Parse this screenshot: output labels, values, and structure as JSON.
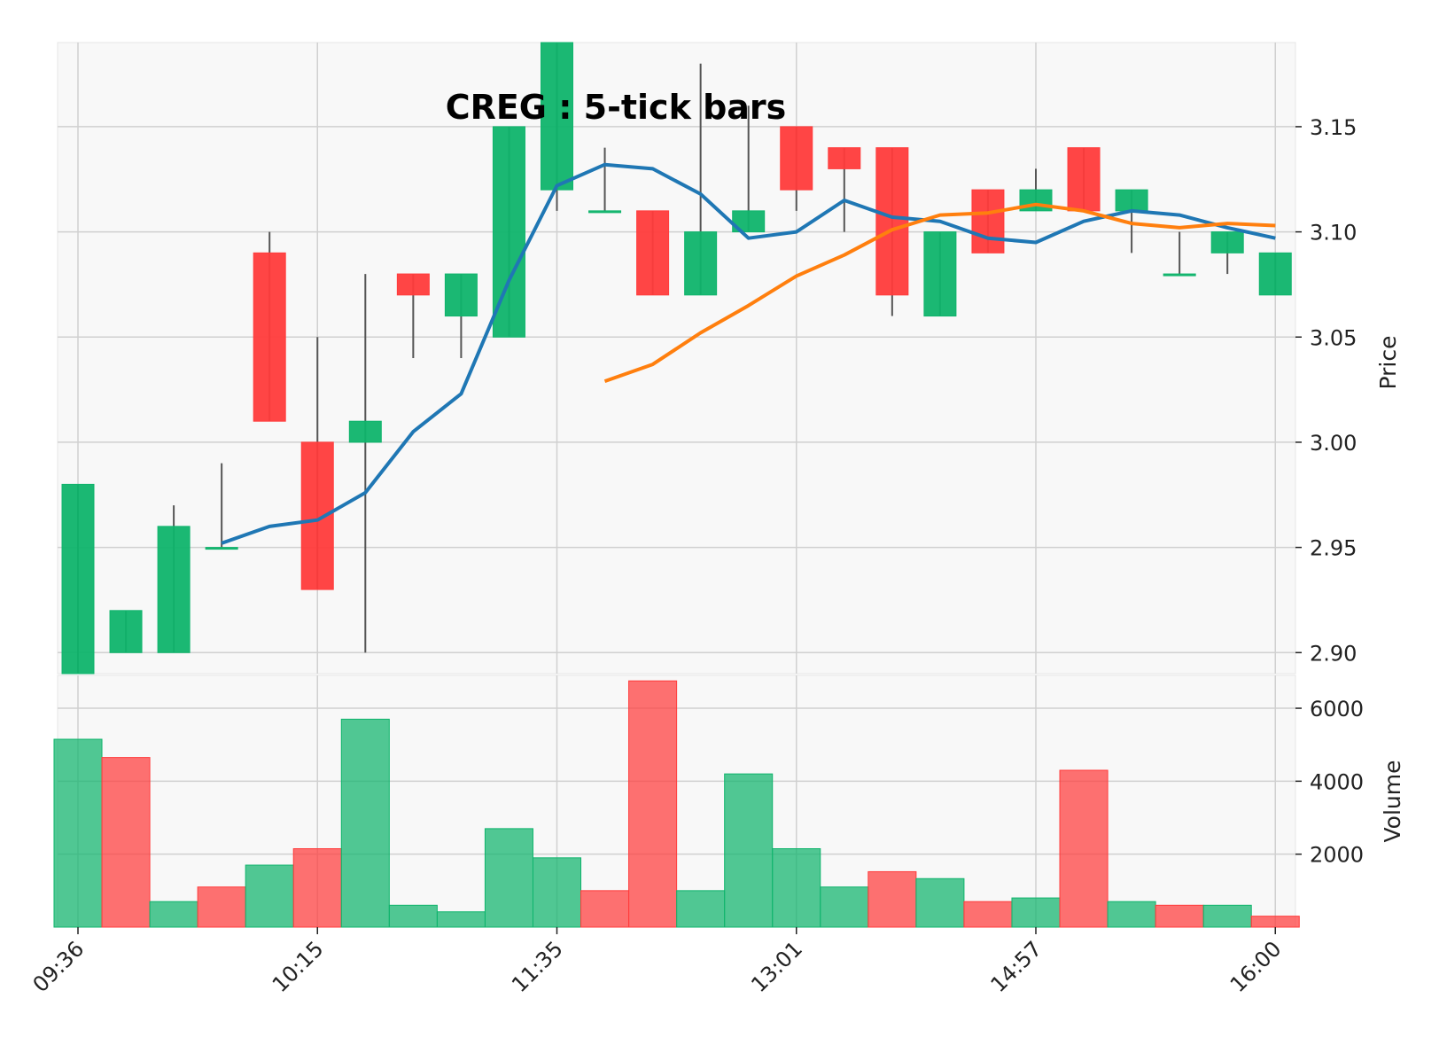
{
  "chart_data": {
    "type": "candlestick",
    "title": "CREG : 5-tick bars",
    "price_ylabel": "Price",
    "volume_ylabel": "Volume",
    "price_ylim": [
      2.89,
      3.19
    ],
    "volume_ylim": [
      0,
      6900
    ],
    "x_tick_labels": [
      "09:36",
      "10:15",
      "11:35",
      "13:01",
      "14:57",
      "16:00"
    ],
    "price_ticks": [
      {
        "value": 2.9,
        "label": "2.90"
      },
      {
        "value": 2.95,
        "label": "2.95"
      },
      {
        "value": 3.0,
        "label": "3.00"
      },
      {
        "value": 3.05,
        "label": "3.05"
      },
      {
        "value": 3.1,
        "label": "3.10"
      },
      {
        "value": 3.15,
        "label": "3.15"
      }
    ],
    "volume_ticks": [
      {
        "value": 2000,
        "label": "2000"
      },
      {
        "value": 4000,
        "label": "4000"
      },
      {
        "value": 6000,
        "label": "6000"
      }
    ],
    "colors": {
      "up": "#0fb46c",
      "down": "#ff3b3b",
      "ma_short": "#1f77b4",
      "ma_long": "#ff7f0e",
      "grid": "#d0d0d0",
      "panel_bg": "#f8f8f8"
    },
    "candles": [
      {
        "open": 2.89,
        "high": 2.98,
        "low": 2.89,
        "close": 2.98
      },
      {
        "open": 2.9,
        "high": 2.92,
        "low": 2.9,
        "close": 2.92
      },
      {
        "open": 2.9,
        "high": 2.97,
        "low": 2.9,
        "close": 2.96
      },
      {
        "open": 2.95,
        "high": 2.99,
        "low": 2.95,
        "close": 2.95
      },
      {
        "open": 3.09,
        "high": 3.1,
        "low": 3.01,
        "close": 3.01
      },
      {
        "open": 3.0,
        "high": 3.05,
        "low": 2.93,
        "close": 2.93
      },
      {
        "open": 3.0,
        "high": 3.08,
        "low": 2.9,
        "close": 3.01
      },
      {
        "open": 3.08,
        "high": 3.08,
        "low": 3.04,
        "close": 3.07
      },
      {
        "open": 3.06,
        "high": 3.08,
        "low": 3.04,
        "close": 3.08
      },
      {
        "open": 3.05,
        "high": 3.15,
        "low": 3.05,
        "close": 3.15
      },
      {
        "open": 3.12,
        "high": 3.19,
        "low": 3.11,
        "close": 3.19
      },
      {
        "open": 3.11,
        "high": 3.14,
        "low": 3.11,
        "close": 3.11
      },
      {
        "open": 3.11,
        "high": 3.11,
        "low": 3.07,
        "close": 3.07
      },
      {
        "open": 3.07,
        "high": 3.18,
        "low": 3.07,
        "close": 3.1
      },
      {
        "open": 3.1,
        "high": 3.16,
        "low": 3.1,
        "close": 3.11
      },
      {
        "open": 3.15,
        "high": 3.15,
        "low": 3.11,
        "close": 3.12
      },
      {
        "open": 3.14,
        "high": 3.14,
        "low": 3.1,
        "close": 3.13
      },
      {
        "open": 3.14,
        "high": 3.14,
        "low": 3.06,
        "close": 3.07
      },
      {
        "open": 3.06,
        "high": 3.1,
        "low": 3.06,
        "close": 3.1
      },
      {
        "open": 3.12,
        "high": 3.12,
        "low": 3.09,
        "close": 3.09
      },
      {
        "open": 3.11,
        "high": 3.13,
        "low": 3.11,
        "close": 3.12
      },
      {
        "open": 3.14,
        "high": 3.14,
        "low": 3.11,
        "close": 3.11
      },
      {
        "open": 3.11,
        "high": 3.12,
        "low": 3.09,
        "close": 3.12
      },
      {
        "open": 3.08,
        "high": 3.1,
        "low": 3.08,
        "close": 3.08
      },
      {
        "open": 3.09,
        "high": 3.1,
        "low": 3.08,
        "close": 3.1
      },
      {
        "open": 3.07,
        "high": 3.09,
        "low": 3.07,
        "close": 3.09
      }
    ],
    "ma_short": [
      null,
      null,
      null,
      2.952,
      2.96,
      2.963,
      2.976,
      3.005,
      3.023,
      3.077,
      3.122,
      3.132,
      3.13,
      3.118,
      3.097,
      3.1,
      3.115,
      3.107,
      3.105,
      3.097,
      3.095,
      3.105,
      3.11,
      3.108,
      3.102,
      3.097
    ],
    "ma_long": [
      null,
      null,
      null,
      null,
      null,
      null,
      null,
      null,
      null,
      null,
      null,
      3.029,
      3.037,
      3.052,
      3.065,
      3.079,
      3.089,
      3.101,
      3.108,
      3.109,
      3.113,
      3.11,
      3.104,
      3.102,
      3.104,
      3.103
    ],
    "volumes": [
      {
        "value": 5150,
        "dir": "up"
      },
      {
        "value": 4650,
        "dir": "down"
      },
      {
        "value": 700,
        "dir": "up"
      },
      {
        "value": 1100,
        "dir": "down"
      },
      {
        "value": 1700,
        "dir": "up"
      },
      {
        "value": 2150,
        "dir": "down"
      },
      {
        "value": 5700,
        "dir": "up"
      },
      {
        "value": 600,
        "dir": "up"
      },
      {
        "value": 420,
        "dir": "up"
      },
      {
        "value": 2700,
        "dir": "up"
      },
      {
        "value": 1900,
        "dir": "up"
      },
      {
        "value": 1000,
        "dir": "down"
      },
      {
        "value": 6750,
        "dir": "down"
      },
      {
        "value": 1000,
        "dir": "up"
      },
      {
        "value": 4200,
        "dir": "up"
      },
      {
        "value": 2150,
        "dir": "up"
      },
      {
        "value": 1100,
        "dir": "up"
      },
      {
        "value": 1520,
        "dir": "down"
      },
      {
        "value": 1330,
        "dir": "up"
      },
      {
        "value": 700,
        "dir": "down"
      },
      {
        "value": 800,
        "dir": "up"
      },
      {
        "value": 4300,
        "dir": "down"
      },
      {
        "value": 700,
        "dir": "up"
      },
      {
        "value": 600,
        "dir": "down"
      },
      {
        "value": 600,
        "dir": "up"
      },
      {
        "value": 300,
        "dir": "down"
      }
    ]
  }
}
